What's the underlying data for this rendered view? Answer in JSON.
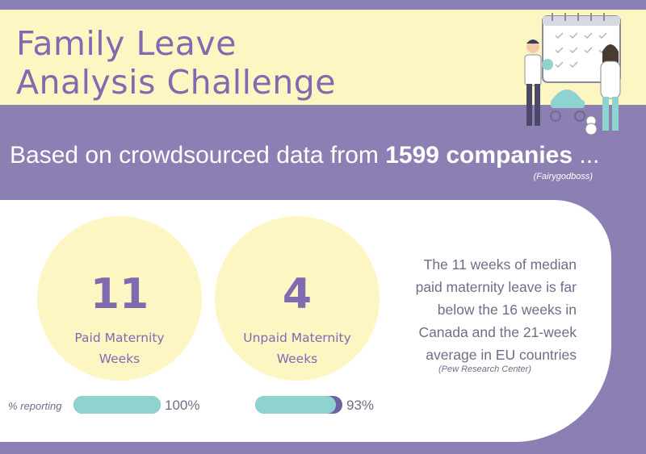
{
  "title": {
    "line1": "Family Leave",
    "line2": "Analysis Challenge"
  },
  "subtitle": {
    "prefix": "Based on crowdsourced data from ",
    "highlight": "1599 companies",
    "suffix": " ..."
  },
  "source_top": "(Fairygodboss)",
  "stats": [
    {
      "value": "11",
      "label_line1": "Paid Maternity",
      "label_line2": "Weeks",
      "reporting_percent": 100,
      "reporting_label": "100%"
    },
    {
      "value": "4",
      "label_line1": "Unpaid Maternity",
      "label_line2": "Weeks",
      "reporting_percent": 93,
      "reporting_label": "93%"
    }
  ],
  "reporting_label": "% reporting",
  "quote": {
    "lines": [
      "The 11 weeks of median",
      "paid maternity leave is far",
      "below the 16 weeks in",
      "Canada and the 21-week",
      "average in EU countries"
    ],
    "source": "(Pew Research Center)"
  },
  "colors": {
    "background": "#8b7fb3",
    "cream": "#fdf6c3",
    "accent_purple": "#7e6bb0",
    "bar_fill": "#8fd3d0",
    "bar_track": "#6e63a2"
  },
  "illustration": {
    "icon": "family-calendar-illustration"
  }
}
